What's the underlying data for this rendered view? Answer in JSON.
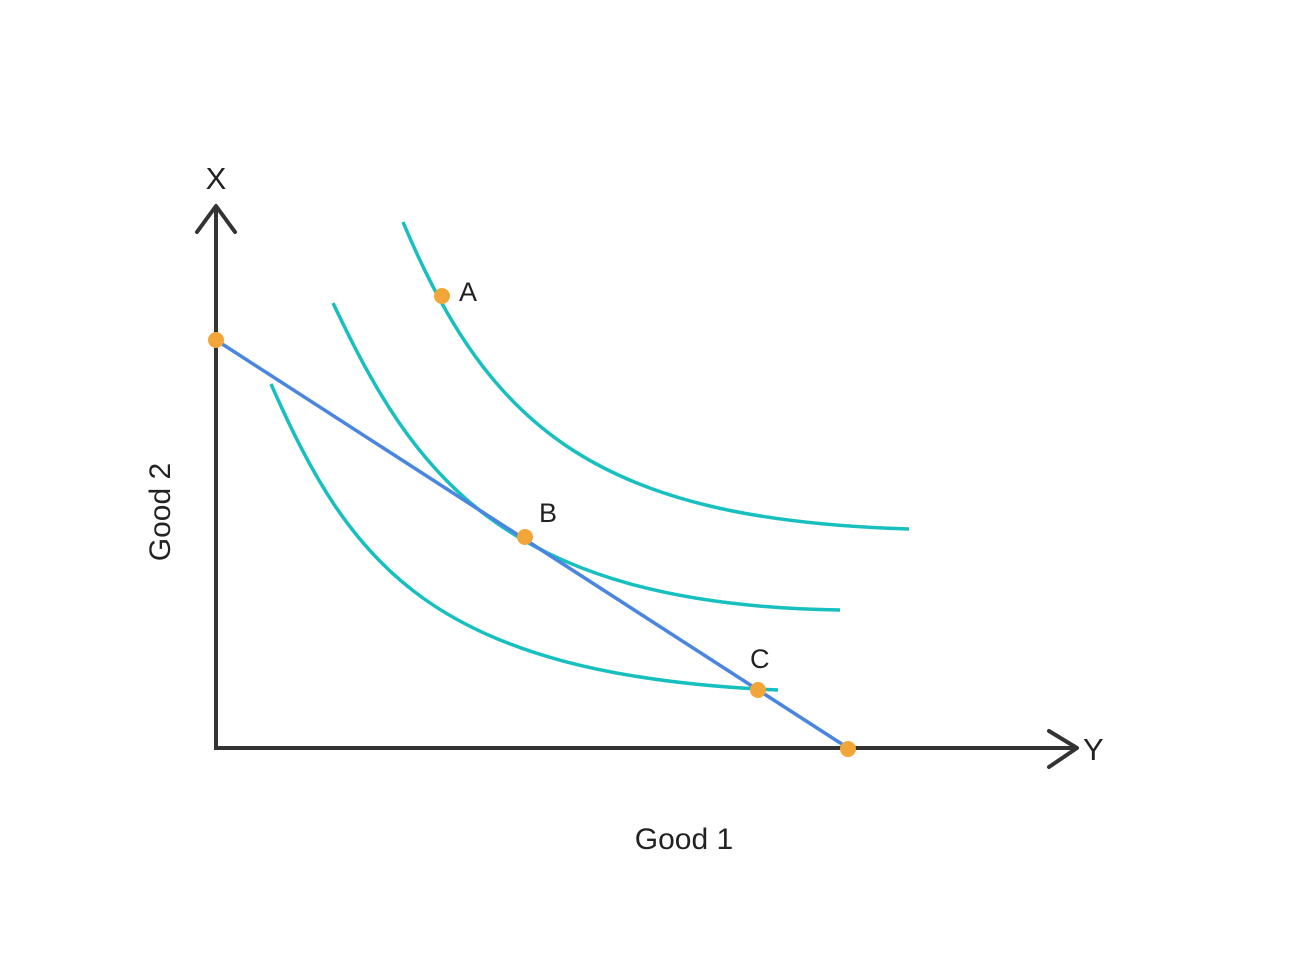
{
  "axes": {
    "y_axis_arrow_label": "X",
    "x_axis_arrow_label": "Y",
    "x_title": "Good 1",
    "y_title": "Good 2"
  },
  "points": {
    "a": "A",
    "b": "B",
    "c": "C"
  },
  "colors": {
    "axis": "#333333",
    "indifference_curve": "#17bfbf",
    "budget_line": "#4a86e0",
    "point": "#f2a63a"
  }
}
